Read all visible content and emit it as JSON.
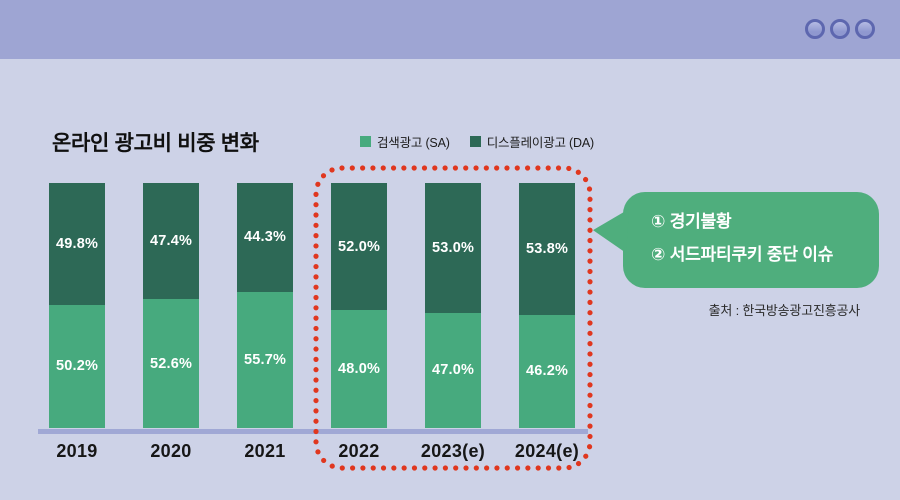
{
  "titlebar": {
    "buttons": [
      "circle-button",
      "circle-button",
      "circle-button"
    ],
    "bar_color": "#9EA5D3",
    "button_ring_color": "#5D67AF"
  },
  "chart_data": {
    "type": "bar",
    "stacked": true,
    "title": "온라인 광고비 비중 변화",
    "categories": [
      "2019",
      "2020",
      "2021",
      "2022",
      "2023(e)",
      "2024(e)"
    ],
    "series": [
      {
        "name": "검색광고 (SA)",
        "color": "#47AA7E",
        "values": [
          50.2,
          52.6,
          55.7,
          48.0,
          47.0,
          46.2
        ]
      },
      {
        "name": "디스플레이광고 (DA)",
        "color": "#2D6956",
        "values": [
          49.8,
          47.4,
          44.3,
          52.0,
          53.0,
          53.8
        ]
      }
    ],
    "value_format": "percent_one_decimal",
    "value_label_color": "#FFFFFF",
    "ylim": [
      0,
      100
    ],
    "grid": false,
    "legend_position": "top",
    "axis_line_color": "#A0A8D5",
    "highlight": {
      "categories": [
        "2022",
        "2023(e)",
        "2024(e)"
      ],
      "style": "red-dotted-rounded-outline",
      "color": "#E0371F"
    }
  },
  "annotation": {
    "lines": [
      "① 경기불황",
      "② 서드파티쿠키 중단 이슈"
    ],
    "bubble_color": "#4FAE7D"
  },
  "source": "출처 : 한국방송광고진흥공사",
  "background_color": "#CDD2E7"
}
